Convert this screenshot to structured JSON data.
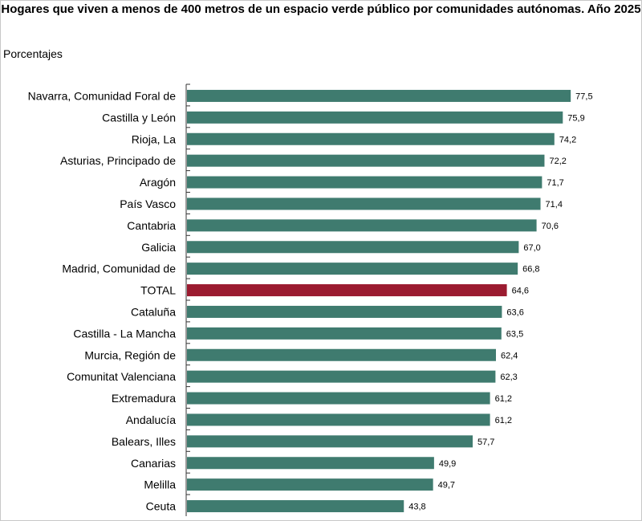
{
  "chart_data": {
    "type": "bar",
    "orientation": "horizontal",
    "title": "Hogares que viven a menos de 400 metros de un espacio verde público por comunidades autónomas. Año 2025",
    "units_label": "Porcentajes",
    "categories": [
      "Navarra, Comunidad Foral de",
      "Castilla y León",
      "Rioja, La",
      "Asturias, Principado de",
      "Aragón",
      "País Vasco",
      "Cantabria",
      "Galicia",
      "Madrid, Comunidad de",
      "TOTAL",
      "Cataluña",
      "Castilla - La Mancha",
      "Murcia, Región de",
      "Comunitat Valenciana",
      "Extremadura",
      "Andalucía",
      "Balears, Illes",
      "Canarias",
      "Melilla",
      "Ceuta"
    ],
    "values": [
      77.5,
      75.9,
      74.2,
      72.2,
      71.7,
      71.4,
      70.6,
      67.0,
      66.8,
      64.6,
      63.6,
      63.5,
      62.4,
      62.3,
      61.2,
      61.2,
      57.7,
      49.9,
      49.7,
      43.8
    ],
    "value_labels": [
      "77,5",
      "75,9",
      "74,2",
      "72,2",
      "71,7",
      "71,4",
      "70,6",
      "67,0",
      "66,8",
      "64,6",
      "63,6",
      "63,5",
      "62,4",
      "62,3",
      "61,2",
      "61,2",
      "57,7",
      "49,9",
      "49,7",
      "43,8"
    ],
    "highlight_category": "TOTAL",
    "colors": {
      "bar": "#3f7b6f",
      "highlight": "#9b1b30"
    },
    "xlim": [
      0,
      80
    ],
    "grid": false,
    "legend": "none"
  }
}
